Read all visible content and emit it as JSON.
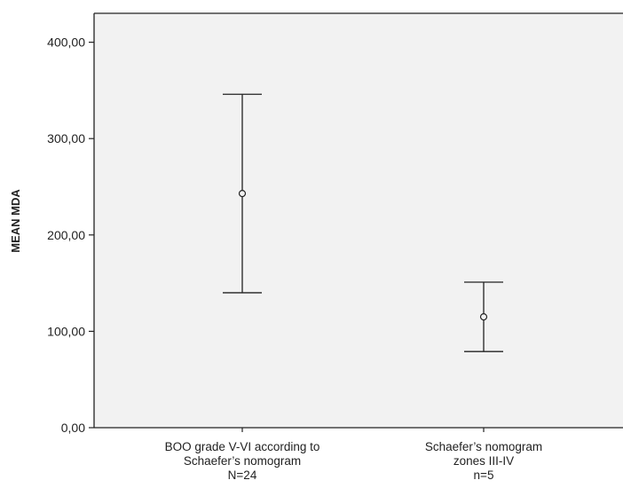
{
  "chart_data": {
    "type": "errorbar",
    "ylabel": "MEAN MDA",
    "ylim": [
      0,
      430
    ],
    "yticks": [
      "0,00",
      "100,00",
      "200,00",
      "300,00",
      "400,00"
    ],
    "ytick_values": [
      0,
      100,
      200,
      300,
      400
    ],
    "categories": [
      {
        "lines": [
          "BOO grade V-VI according to",
          "Schaefer’s nomogram",
          "N=24"
        ],
        "mean": 243,
        "lower": 140,
        "upper": 346
      },
      {
        "lines": [
          "Schaefer’s nomogram",
          "zones III-IV",
          "n=5"
        ],
        "mean": 115,
        "lower": 79,
        "upper": 151
      }
    ],
    "grid": false,
    "background_color": "#f2f2f2",
    "line_color": "#222222"
  }
}
